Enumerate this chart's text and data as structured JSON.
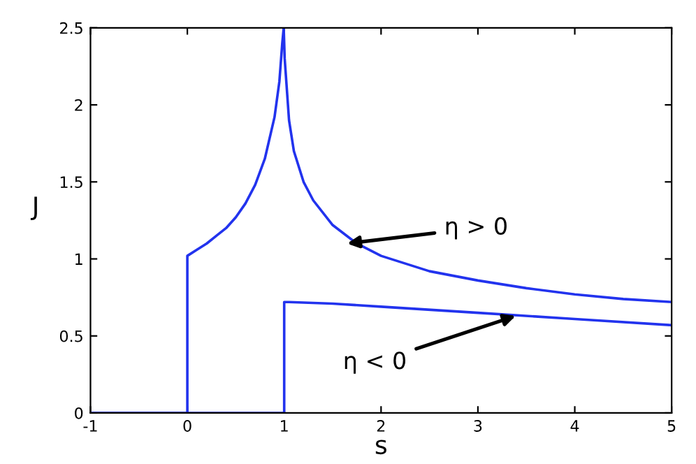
{
  "chart_data": {
    "type": "line",
    "xlabel": "s",
    "ylabel": "J",
    "xlim": [
      -1,
      5
    ],
    "ylim": [
      0,
      2.5
    ],
    "xticks": [
      -1,
      0,
      1,
      2,
      3,
      4,
      5
    ],
    "yticks": [
      0,
      0.5,
      1,
      1.5,
      2,
      2.5
    ],
    "grid": false,
    "legend": false,
    "marker": "none",
    "line_style": "solid",
    "series": [
      {
        "color": "#2233ee",
        "x": [
          -1,
          0,
          0,
          0.1,
          0.2,
          0.3,
          0.4,
          0.5,
          0.6,
          0.7,
          0.8,
          0.9,
          0.95,
          0.98,
          0.995,
          1.005,
          1.05,
          1.1,
          1.2,
          1.3,
          1.5,
          1.75,
          2,
          2.5,
          3,
          3.5,
          4,
          4.5,
          5
        ],
        "values": [
          0,
          0,
          1.02,
          1.06,
          1.1,
          1.15,
          1.2,
          1.27,
          1.36,
          1.48,
          1.65,
          1.92,
          2.15,
          2.4,
          2.5,
          2.3,
          1.9,
          1.7,
          1.5,
          1.38,
          1.22,
          1.1,
          1.02,
          0.92,
          0.86,
          0.81,
          0.77,
          0.74,
          0.72
        ]
      },
      {
        "color": "#2233ee",
        "x": [
          -1,
          1,
          1,
          1.05,
          1.5,
          2,
          3,
          4,
          5
        ],
        "values": [
          0,
          0,
          0.72,
          0.72,
          0.71,
          0.69,
          0.65,
          0.61,
          0.57
        ]
      }
    ],
    "annotations": [
      {
        "text": "η > 0",
        "x": 1.65,
        "y": 1.1
      },
      {
        "text": "η < 0",
        "x": 3.39,
        "y": 0.63
      }
    ]
  }
}
